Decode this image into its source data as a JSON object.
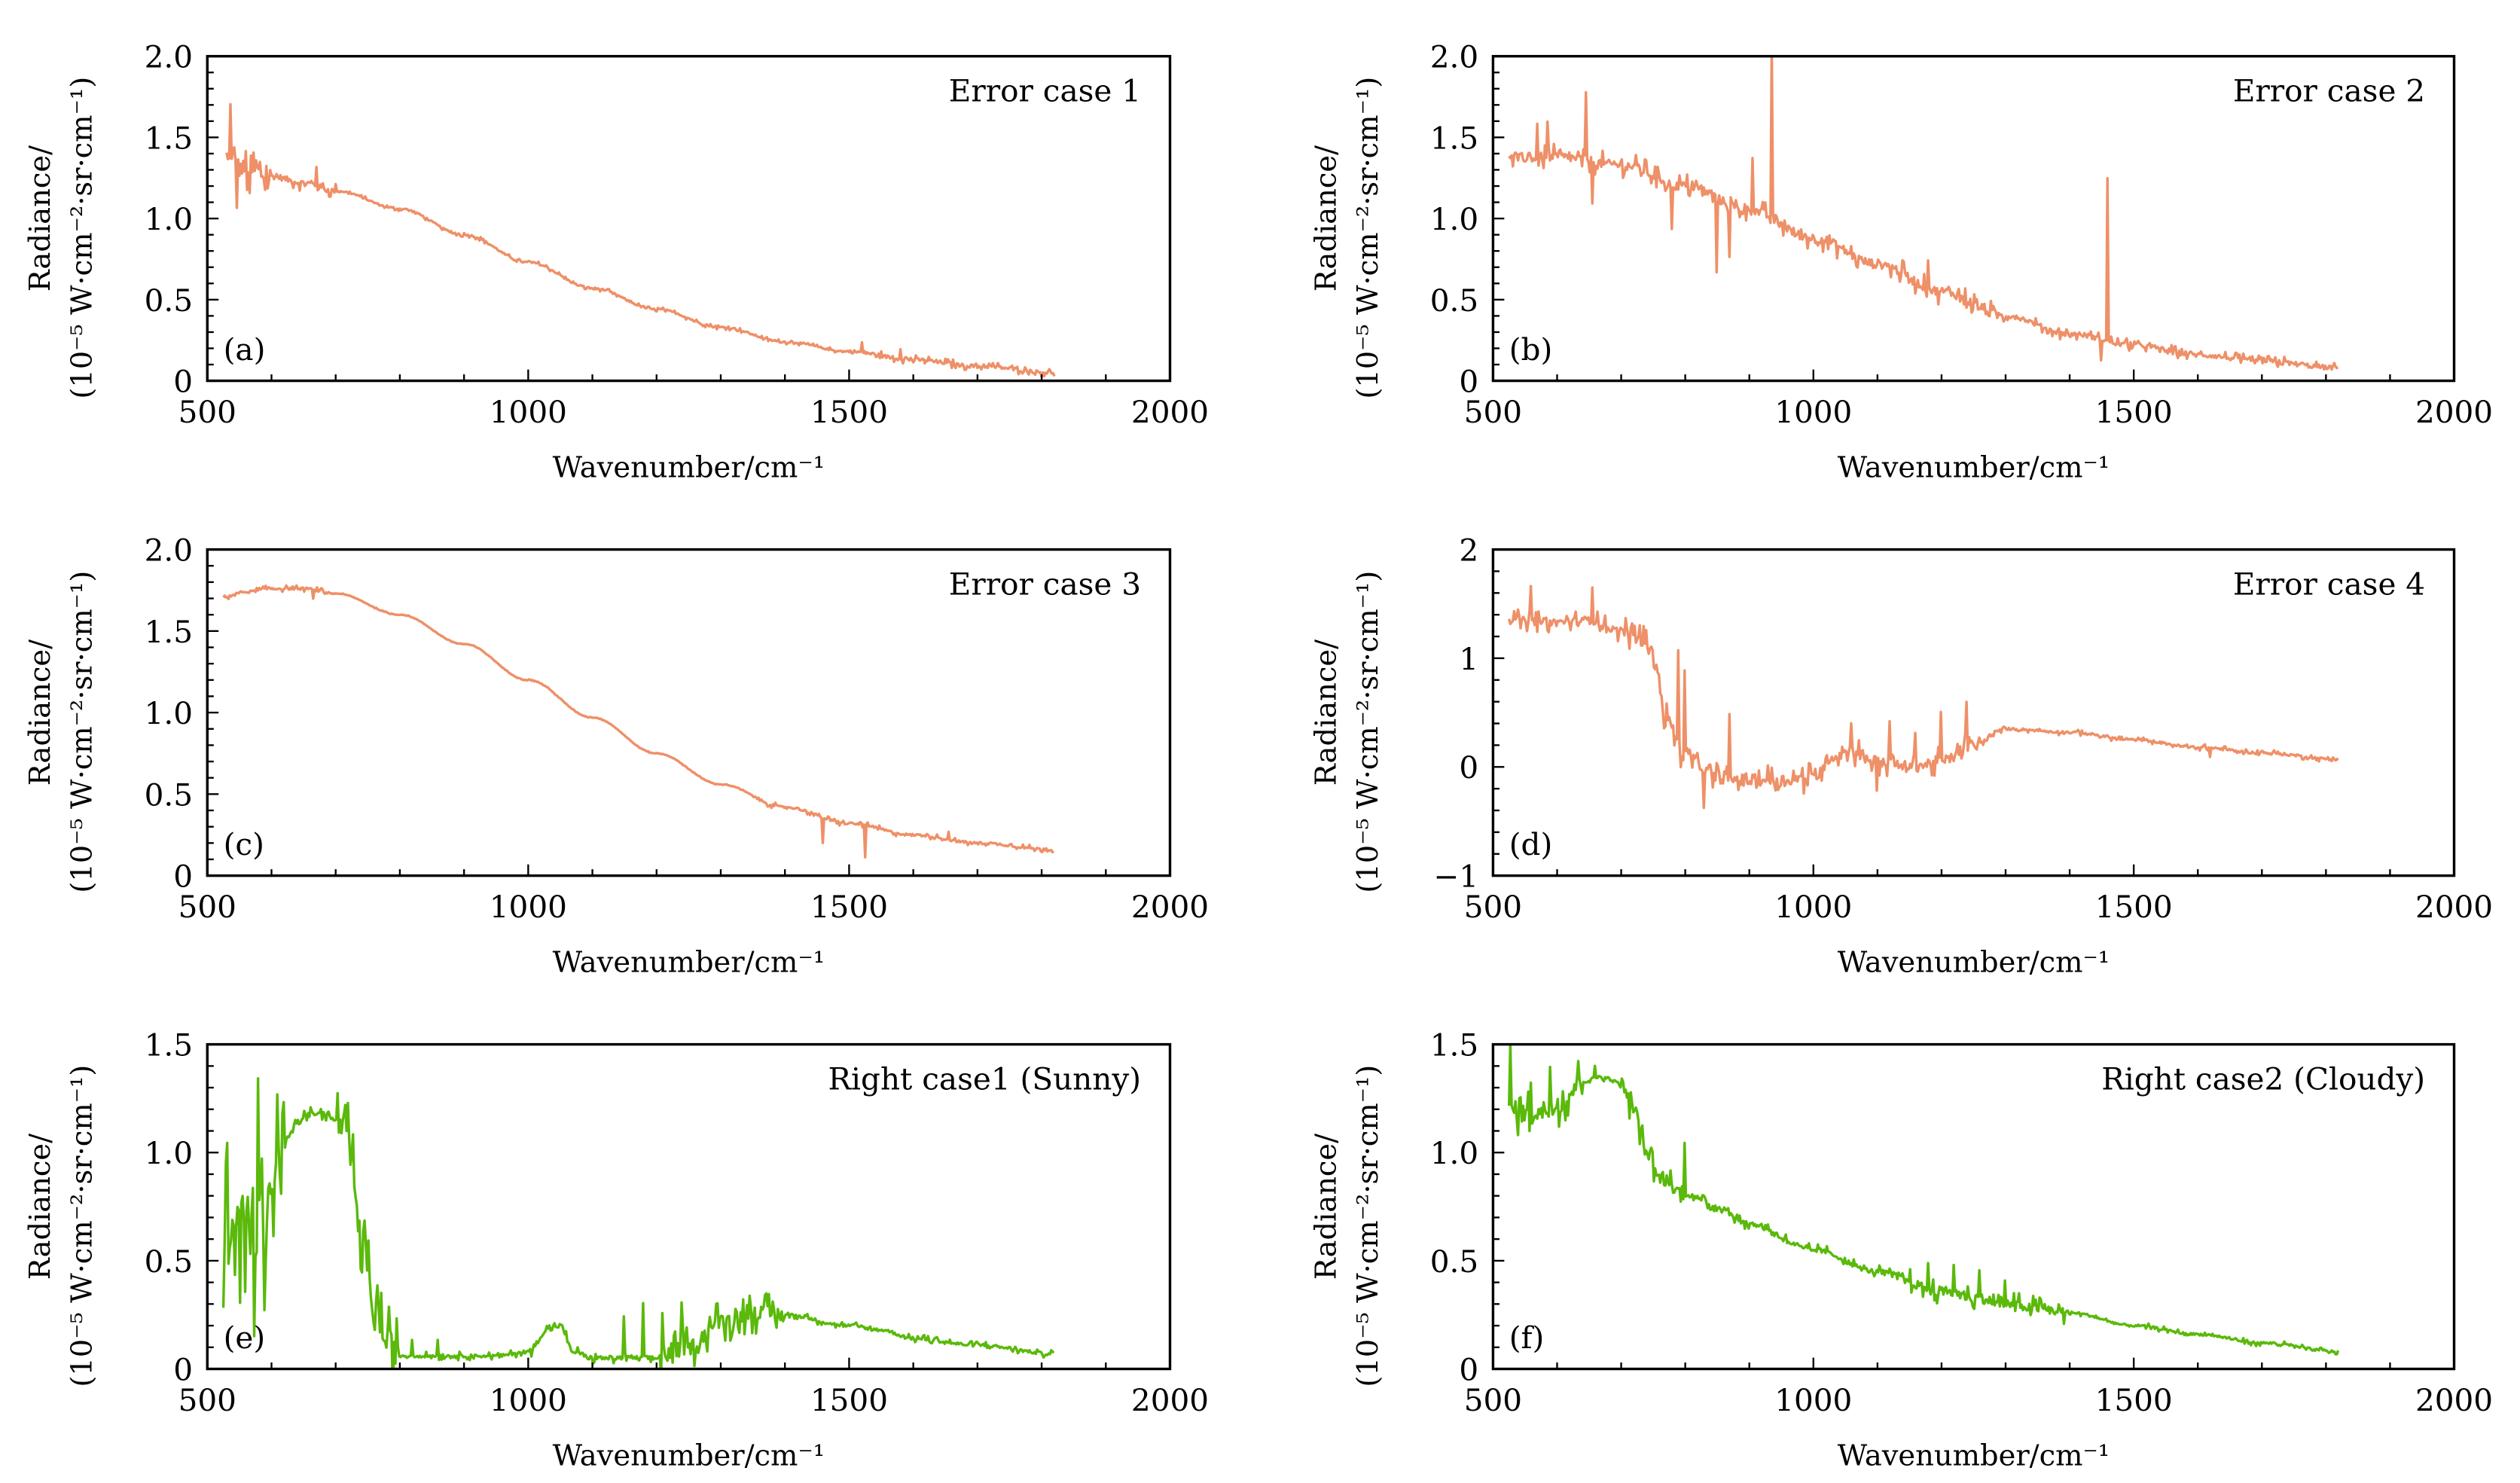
{
  "figure": {
    "colors": {
      "error": "#EE9068",
      "right": "#5AB90A"
    }
  },
  "chart_data": [
    {
      "type": "line",
      "id": "a",
      "panel_letter": "(a)",
      "title": "Error case 1",
      "xlabel": "Wavenumber/cm⁻¹",
      "ylabel_line1": "Radiance/",
      "ylabel_line2": "(10⁻⁵ W·cm⁻²·sr·cm⁻¹)",
      "xlim": [
        500,
        2000
      ],
      "ylim": [
        0,
        2.0
      ],
      "xticks": [
        500,
        1000,
        1500,
        2000
      ],
      "xtick_labels": [
        "500",
        "1000",
        "1500",
        "2000"
      ],
      "yticks": [
        0,
        0.5,
        1.0,
        1.5,
        2.0
      ],
      "ytick_labels": [
        "0",
        "0.5",
        "1.0",
        "1.5",
        "2.0"
      ],
      "x_minor_step": 100,
      "y_minor_step": 0.1,
      "color_key": "error",
      "series": [
        {
          "name": "Error case 1",
          "x": [
            530,
            560,
            600,
            650,
            700,
            800,
            900,
            1000,
            1100,
            1200,
            1300,
            1400,
            1500,
            1600,
            1700,
            1820
          ],
          "y": [
            1.35,
            1.3,
            1.26,
            1.22,
            1.17,
            1.06,
            0.9,
            0.73,
            0.57,
            0.44,
            0.33,
            0.24,
            0.18,
            0.13,
            0.09,
            0.05
          ],
          "noise": [
            [
              530,
              600,
              0.18
            ],
            [
              600,
              700,
              0.05
            ],
            [
              700,
              1500,
              0.015
            ],
            [
              1500,
              1820,
              0.03
            ]
          ],
          "spikes": [
            [
              535,
              0.4
            ],
            [
              545,
              -0.22
            ],
            [
              565,
              -0.2
            ],
            [
              670,
              0.12
            ],
            [
              1520,
              0.06
            ],
            [
              1580,
              0.07
            ]
          ]
        }
      ]
    },
    {
      "type": "line",
      "id": "b",
      "panel_letter": "(b)",
      "title": "Error case 2",
      "xlabel": "Wavenumber/cm⁻¹",
      "ylabel_line1": "Radiance/",
      "ylabel_line2": "(10⁻⁵ W·cm⁻²·sr·cm⁻¹)",
      "xlim": [
        500,
        2000
      ],
      "ylim": [
        0,
        2.0
      ],
      "xticks": [
        500,
        1000,
        1500,
        2000
      ],
      "xtick_labels": [
        "500",
        "1000",
        "1500",
        "2000"
      ],
      "yticks": [
        0,
        0.5,
        1.0,
        1.5,
        2.0
      ],
      "ytick_labels": [
        "0",
        "0.5",
        "1.0",
        "1.5",
        "2.0"
      ],
      "x_minor_step": 100,
      "y_minor_step": 0.1,
      "color_key": "error",
      "series": [
        {
          "name": "Error case 2",
          "x": [
            525,
            600,
            700,
            800,
            900,
            1000,
            1100,
            1200,
            1300,
            1400,
            1500,
            1600,
            1700,
            1820
          ],
          "y": [
            1.37,
            1.38,
            1.33,
            1.2,
            1.05,
            0.88,
            0.72,
            0.55,
            0.4,
            0.29,
            0.22,
            0.16,
            0.12,
            0.08
          ],
          "noise": [
            [
              525,
              1300,
              0.08
            ],
            [
              1300,
              1820,
              0.04
            ]
          ],
          "spikes": [
            [
              570,
              0.2
            ],
            [
              585,
              0.18
            ],
            [
              645,
              0.38
            ],
            [
              655,
              -0.25
            ],
            [
              780,
              -0.3
            ],
            [
              850,
              -0.45
            ],
            [
              870,
              -0.3
            ],
            [
              905,
              0.35
            ],
            [
              935,
              1.0
            ],
            [
              1180,
              0.2
            ],
            [
              1460,
              0.98
            ],
            [
              1450,
              -0.12
            ]
          ]
        }
      ]
    },
    {
      "type": "line",
      "id": "c",
      "panel_letter": "(c)",
      "title": "Error case 3",
      "xlabel": "Wavenumber/cm⁻¹",
      "ylabel_line1": "Radiance/",
      "ylabel_line2": "(10⁻⁵ W·cm⁻²·sr·cm⁻¹)",
      "xlim": [
        500,
        2000
      ],
      "ylim": [
        0,
        2.0
      ],
      "xticks": [
        500,
        1000,
        1500,
        2000
      ],
      "xtick_labels": [
        "500",
        "1000",
        "1500",
        "2000"
      ],
      "yticks": [
        0,
        0.5,
        1.0,
        1.5,
        2.0
      ],
      "ytick_labels": [
        "0",
        "0.5",
        "1.0",
        "1.5",
        "2.0"
      ],
      "x_minor_step": 100,
      "y_minor_step": 0.1,
      "color_key": "error",
      "series": [
        {
          "name": "Error case 3",
          "x": [
            525,
            560,
            600,
            650,
            700,
            800,
            900,
            1000,
            1100,
            1200,
            1300,
            1400,
            1500,
            1600,
            1700,
            1820
          ],
          "y": [
            1.71,
            1.74,
            1.76,
            1.76,
            1.73,
            1.6,
            1.42,
            1.2,
            0.97,
            0.75,
            0.56,
            0.42,
            0.32,
            0.25,
            0.2,
            0.16
          ],
          "noise": [
            [
              525,
              700,
              0.02
            ],
            [
              700,
              1350,
              0.004
            ],
            [
              1350,
              1820,
              0.02
            ]
          ],
          "spikes": [
            [
              665,
              -0.06
            ],
            [
              1460,
              -0.15
            ],
            [
              1525,
              -0.18
            ],
            [
              1655,
              0.04
            ]
          ]
        }
      ]
    },
    {
      "type": "line",
      "id": "d",
      "panel_letter": "(d)",
      "title": "Error case 4",
      "xlabel": "Wavenumber/cm⁻¹",
      "ylabel_line1": "Radiance/",
      "ylabel_line2": "(10⁻⁵ W·cm⁻²·sr·cm⁻¹)",
      "xlim": [
        500,
        2000
      ],
      "ylim": [
        -1,
        2
      ],
      "xticks": [
        500,
        1000,
        1500,
        2000
      ],
      "xtick_labels": [
        "500",
        "1000",
        "1500",
        "2000"
      ],
      "yticks": [
        -1,
        0,
        1,
        2
      ],
      "ytick_labels": [
        "−1",
        "0",
        "1",
        "2"
      ],
      "x_minor_step": 100,
      "y_minor_step": 0.2,
      "color_key": "error",
      "series": [
        {
          "name": "Error case 4",
          "x": [
            525,
            600,
            650,
            700,
            730,
            750,
            770,
            800,
            850,
            900,
            950,
            1000,
            1030,
            1060,
            1100,
            1150,
            1200,
            1250,
            1300,
            1400,
            1500,
            1600,
            1700,
            1820
          ],
          "y": [
            1.35,
            1.33,
            1.35,
            1.25,
            1.2,
            1.05,
            0.45,
            0.1,
            -0.1,
            -0.12,
            -0.12,
            -0.1,
            0.1,
            0.15,
            0.05,
            0.0,
            0.05,
            0.2,
            0.35,
            0.32,
            0.25,
            0.18,
            0.13,
            0.07
          ],
          "noise": [
            [
              525,
              700,
              0.1
            ],
            [
              700,
              760,
              0.15
            ],
            [
              760,
              1260,
              0.15
            ],
            [
              1260,
              1820,
              0.03
            ]
          ],
          "spikes": [
            [
              560,
              0.25
            ],
            [
              655,
              0.32
            ],
            [
              790,
              0.85
            ],
            [
              800,
              0.75
            ],
            [
              830,
              -0.3
            ],
            [
              870,
              0.45
            ],
            [
              1060,
              0.3
            ],
            [
              1100,
              -0.25
            ],
            [
              1120,
              0.45
            ],
            [
              1160,
              0.45
            ],
            [
              1200,
              0.45
            ],
            [
              1240,
              0.4
            ],
            [
              1620,
              -0.08
            ]
          ]
        }
      ]
    },
    {
      "type": "line",
      "id": "e",
      "panel_letter": "(e)",
      "title": "Right case1 (Sunny)",
      "xlabel": "Wavenumber/cm⁻¹",
      "ylabel_line1": "Radiance/",
      "ylabel_line2": "(10⁻⁵ W·cm⁻²·sr·cm⁻¹)",
      "xlim": [
        500,
        2000
      ],
      "ylim": [
        0,
        1.5
      ],
      "xticks": [
        500,
        1000,
        1500,
        2000
      ],
      "xtick_labels": [
        "500",
        "1000",
        "1500",
        "2000"
      ],
      "yticks": [
        0,
        0.5,
        1.0,
        1.5
      ],
      "ytick_labels": [
        "0",
        "0.5",
        "1.0",
        "1.5"
      ],
      "x_minor_step": 100,
      "y_minor_step": 0.1,
      "color_key": "right",
      "series": [
        {
          "name": "Right case1 (Sunny)",
          "x": [
            525,
            560,
            600,
            620,
            640,
            660,
            680,
            700,
            720,
            740,
            760,
            780,
            800,
            850,
            900,
            950,
            1000,
            1030,
            1050,
            1070,
            1100,
            1150,
            1200,
            1250,
            1300,
            1350,
            1400,
            1500,
            1550,
            1600,
            1700,
            1820
          ],
          "y": [
            0.6,
            0.65,
            0.7,
            1.05,
            1.15,
            1.18,
            1.18,
            1.15,
            1.05,
            0.6,
            0.3,
            0.12,
            0.06,
            0.06,
            0.06,
            0.06,
            0.08,
            0.18,
            0.2,
            0.08,
            0.05,
            0.05,
            0.05,
            0.1,
            0.22,
            0.26,
            0.25,
            0.2,
            0.18,
            0.14,
            0.11,
            0.07
          ],
          "noise": [
            [
              525,
              620,
              0.55
            ],
            [
              620,
              700,
              0.03
            ],
            [
              700,
              800,
              0.18
            ],
            [
              800,
              1000,
              0.02
            ],
            [
              1000,
              1200,
              0.03
            ],
            [
              1200,
              1400,
              0.1
            ],
            [
              1400,
              1820,
              0.02
            ]
          ],
          "spikes": [
            [
              580,
              0.55
            ],
            [
              610,
              0.55
            ],
            [
              560,
              -0.45
            ],
            [
              590,
              -0.45
            ],
            [
              820,
              0.08
            ],
            [
              860,
              0.08
            ],
            [
              1150,
              0.2
            ],
            [
              1180,
              0.25
            ],
            [
              1210,
              0.25
            ],
            [
              1240,
              0.2
            ]
          ]
        }
      ]
    },
    {
      "type": "line",
      "id": "f",
      "panel_letter": "(f)",
      "title": "Right case2 (Cloudy)",
      "xlabel": "Wavenumber/cm⁻¹",
      "ylabel_line1": "Radiance/",
      "ylabel_line2": "(10⁻⁵ W·cm⁻²·sr·cm⁻¹)",
      "xlim": [
        500,
        2000
      ],
      "ylim": [
        0,
        1.5
      ],
      "xticks": [
        500,
        1000,
        1500,
        2000
      ],
      "xtick_labels": [
        "500",
        "1000",
        "1500",
        "2000"
      ],
      "yticks": [
        0,
        0.5,
        1.0,
        1.5
      ],
      "ytick_labels": [
        "0",
        "0.5",
        "1.0",
        "1.5"
      ],
      "x_minor_step": 100,
      "y_minor_step": 0.1,
      "color_key": "right",
      "series": [
        {
          "name": "Right case2 (Cloudy)",
          "x": [
            525,
            560,
            600,
            640,
            670,
            700,
            720,
            740,
            760,
            800,
            850,
            900,
            1000,
            1100,
            1200,
            1250,
            1300,
            1350,
            1400,
            1500,
            1600,
            1700,
            1820
          ],
          "y": [
            1.2,
            1.18,
            1.22,
            1.33,
            1.35,
            1.32,
            1.2,
            1.0,
            0.88,
            0.81,
            0.75,
            0.67,
            0.55,
            0.45,
            0.36,
            0.33,
            0.3,
            0.28,
            0.26,
            0.2,
            0.16,
            0.12,
            0.08
          ],
          "noise": [
            [
              525,
              640,
              0.12
            ],
            [
              640,
              700,
              0.02
            ],
            [
              700,
              800,
              0.08
            ],
            [
              800,
              1150,
              0.03
            ],
            [
              1150,
              1400,
              0.06
            ],
            [
              1400,
              1820,
              0.015
            ]
          ],
          "spikes": [
            [
              528,
              0.3
            ],
            [
              560,
              0.2
            ],
            [
              590,
              0.2
            ],
            [
              660,
              0.06
            ],
            [
              800,
              0.18
            ],
            [
              1180,
              0.12
            ],
            [
              1220,
              0.14
            ],
            [
              1260,
              0.12
            ],
            [
              1300,
              0.1
            ]
          ]
        }
      ]
    }
  ]
}
